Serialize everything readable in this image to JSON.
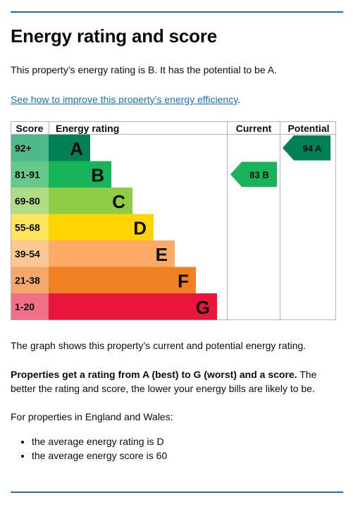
{
  "title": "Energy rating and score",
  "intro": "This property’s energy rating is B. It has the potential to be A.",
  "improve_link": "See how to improve this property’s energy efficiency",
  "improve_link_suffix": ".",
  "graph_description": "The graph shows this property’s current and potential energy rating.",
  "ratings_bold": "Properties get a rating from A (best) to G (worst) and a score.",
  "ratings_rest": " The better the rating and score, the lower your energy bills are likely to be.",
  "region_note": "For properties in England and Wales:",
  "averages": [
    "the average energy rating is D",
    "the average energy score is 60"
  ],
  "chart_data": {
    "type": "table",
    "headers": {
      "score": "Score",
      "rating": "Energy rating",
      "current": "Current",
      "potential": "Potential"
    },
    "bands": [
      {
        "score": "92+",
        "letter": "A",
        "color": "#008054",
        "score_bg": "#4fb98a"
      },
      {
        "score": "81-91",
        "letter": "B",
        "color": "#19b459",
        "score_bg": "#66c98b"
      },
      {
        "score": "69-80",
        "letter": "C",
        "color": "#8dce46",
        "score_bg": "#b0dd83"
      },
      {
        "score": "55-68",
        "letter": "D",
        "color": "#ffd500",
        "score_bg": "#ffe45c"
      },
      {
        "score": "39-54",
        "letter": "E",
        "color": "#fcaa65",
        "score_bg": "#fdc794"
      },
      {
        "score": "21-38",
        "letter": "F",
        "color": "#ef8023",
        "score_bg": "#f4a86a"
      },
      {
        "score": "1-20",
        "letter": "G",
        "color": "#e9153b",
        "score_bg": "#f07088"
      }
    ],
    "current": {
      "score": 83,
      "letter": "B",
      "label": "83  B",
      "color": "#19b459"
    },
    "potential": {
      "score": 94,
      "letter": "A",
      "label": "94  A",
      "color": "#008054"
    }
  }
}
